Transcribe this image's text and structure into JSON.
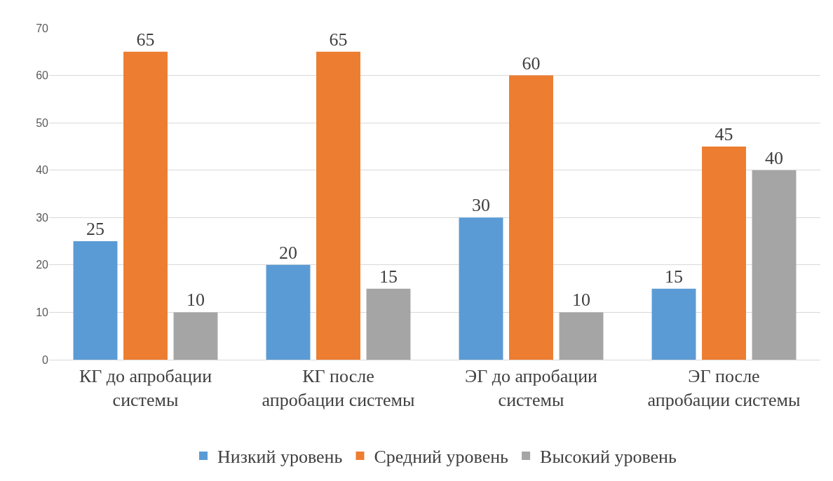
{
  "chart_data": {
    "type": "bar",
    "categories": [
      "КГ до апробации системы",
      "КГ после апробации системы",
      "ЭГ до апробации системы",
      "ЭГ после апробации системы"
    ],
    "series": [
      {
        "name": "Низкий уровень",
        "color": "#5b9bd5",
        "values": [
          25,
          20,
          30,
          15
        ]
      },
      {
        "name": "Средний уровень",
        "color": "#ed7d31",
        "values": [
          65,
          65,
          60,
          45
        ]
      },
      {
        "name": "Высокий уровень",
        "color": "#a5a5a5",
        "values": [
          10,
          15,
          10,
          40
        ]
      }
    ],
    "ylim": [
      0,
      70
    ],
    "yticks": [
      0,
      10,
      20,
      30,
      40,
      50,
      60,
      70
    ],
    "grid": "y",
    "legend": "bottom",
    "data_labels": true
  }
}
